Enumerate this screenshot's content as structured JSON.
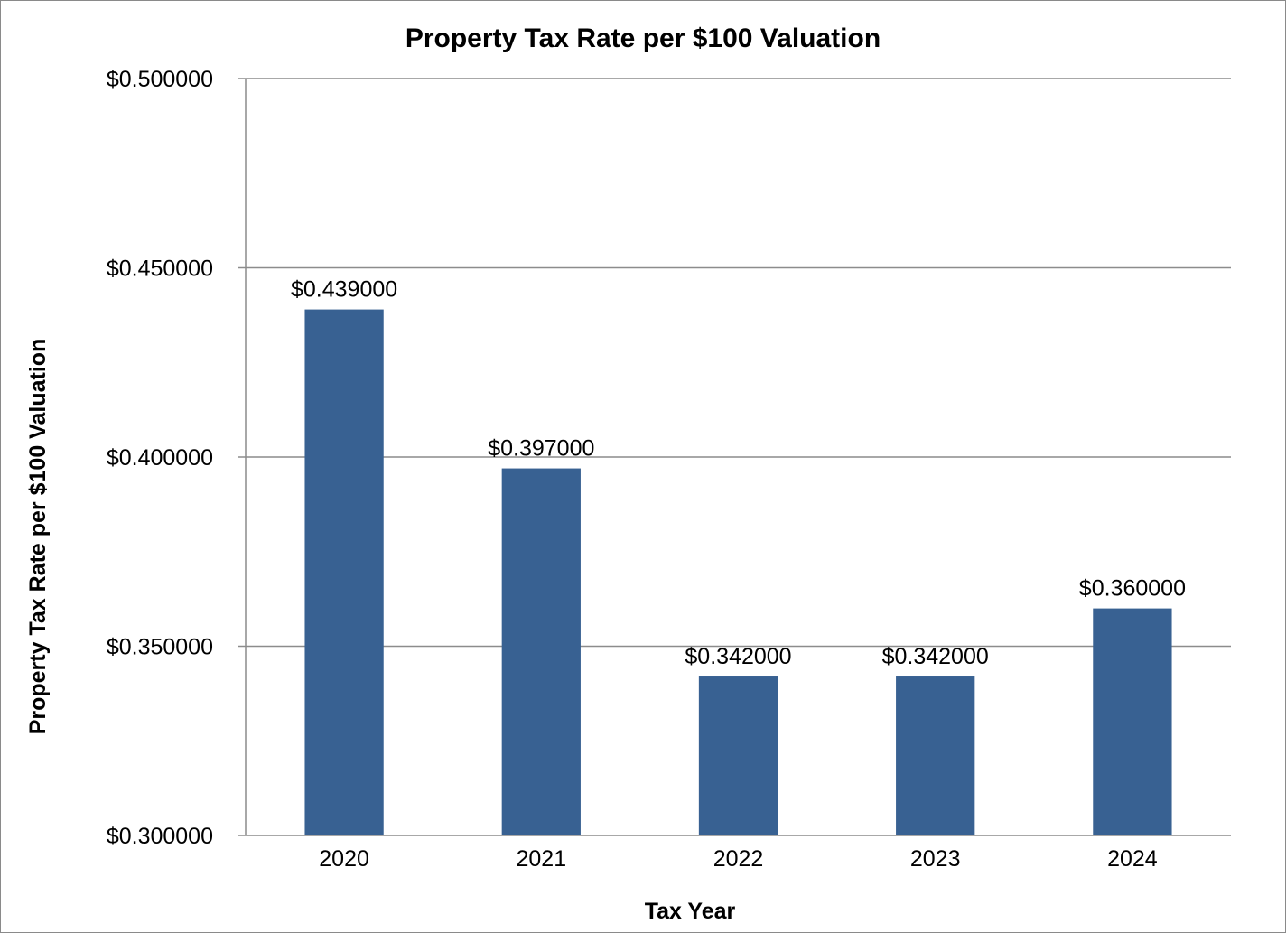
{
  "chart_data": {
    "type": "bar",
    "title": "Property Tax Rate per $100 Valuation",
    "xlabel": "Tax Year",
    "ylabel": "Property Tax Rate per $100 Valuation",
    "categories": [
      "2020",
      "2021",
      "2022",
      "2023",
      "2024"
    ],
    "values": [
      0.439,
      0.397,
      0.342,
      0.342,
      0.36
    ],
    "value_labels": [
      "$0.439000",
      "$0.397000",
      "$0.342000",
      "$0.342000",
      "$0.360000"
    ],
    "ylim": [
      0.3,
      0.5
    ],
    "yticks": [
      0.3,
      0.35,
      0.4,
      0.45,
      0.5
    ],
    "ytick_labels": [
      "$0.300000",
      "$0.350000",
      "$0.400000",
      "$0.450000",
      "$0.500000"
    ],
    "grid": true,
    "legend": "none",
    "bar_color": "#386192",
    "grid_color": "#8c8c8c"
  }
}
